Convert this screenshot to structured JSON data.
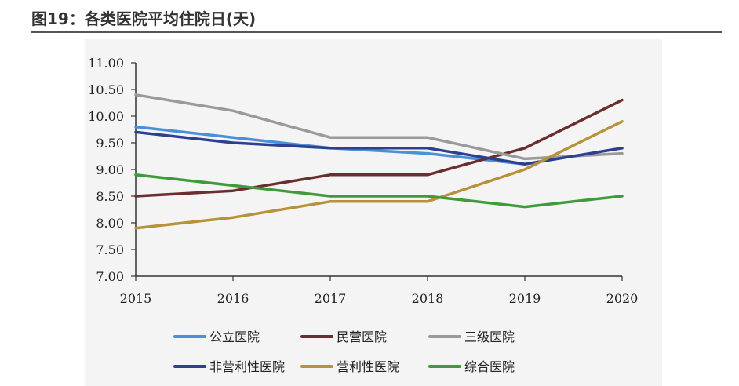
{
  "figure": {
    "title": "图19：各类医院平均住院日(天)"
  },
  "chart_data": {
    "type": "line",
    "categories": [
      "2015",
      "2016",
      "2017",
      "2018",
      "2019",
      "2020"
    ],
    "y_tick_labels": [
      "7.00",
      "7.50",
      "8.00",
      "8.50",
      "9.00",
      "9.50",
      "10.00",
      "10.50",
      "11.00"
    ],
    "ylim": [
      7.0,
      11.0
    ],
    "grid": false,
    "legend_position": "bottom",
    "series": [
      {
        "name": "公立医院",
        "color": "#4a90d9",
        "values": [
          9.8,
          9.6,
          9.4,
          9.3,
          9.1,
          9.4
        ]
      },
      {
        "name": "民营医院",
        "color": "#6b2e2e",
        "values": [
          8.5,
          8.6,
          8.9,
          8.9,
          9.4,
          10.3
        ]
      },
      {
        "name": "三级医院",
        "color": "#9a9a9a",
        "values": [
          10.4,
          10.1,
          9.6,
          9.6,
          9.2,
          9.3
        ]
      },
      {
        "name": "非营利性医院",
        "color": "#2f3f8f",
        "values": [
          9.7,
          9.5,
          9.4,
          9.4,
          9.1,
          9.4
        ]
      },
      {
        "name": "营利性医院",
        "color": "#b8923a",
        "values": [
          7.9,
          8.1,
          8.4,
          8.4,
          9.0,
          9.9
        ]
      },
      {
        "name": "综合医院",
        "color": "#3f9a3a",
        "values": [
          8.9,
          8.7,
          8.5,
          8.5,
          8.3,
          8.5
        ]
      }
    ]
  }
}
